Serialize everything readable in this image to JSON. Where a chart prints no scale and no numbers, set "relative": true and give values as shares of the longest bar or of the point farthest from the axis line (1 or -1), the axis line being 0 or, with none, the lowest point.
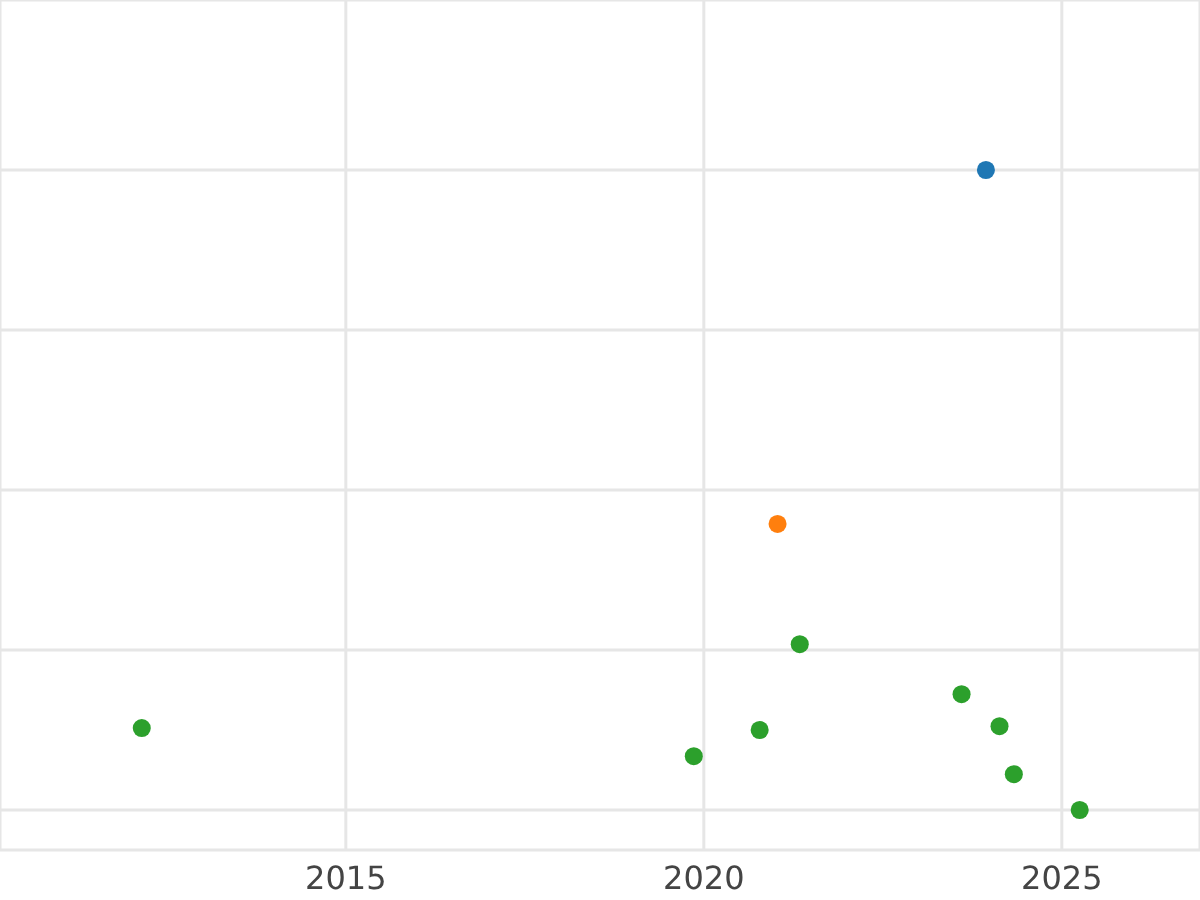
{
  "chart_data": {
    "type": "scatter",
    "relative": true,
    "xlim": [
      2010.17,
      2026.93
    ],
    "xticks": [
      2015,
      2020,
      2025
    ],
    "grid": true,
    "marker": "circle",
    "series": [
      {
        "color": "#1f77b4",
        "x": [
          2023.94
        ],
        "values": [
          1
        ]
      },
      {
        "color": "#ff7f0e",
        "x": [
          2021.03
        ],
        "values": [
          0.447
        ]
      },
      {
        "color": "#2ca02c",
        "x": [
          2012.15,
          2019.86,
          2020.78,
          2021.34,
          2023.6,
          2024.13,
          2024.33,
          2025.25
        ],
        "values": [
          0.128,
          0.084,
          0.125,
          0.259,
          0.181,
          0.131,
          0.056,
          0
        ]
      }
    ]
  }
}
